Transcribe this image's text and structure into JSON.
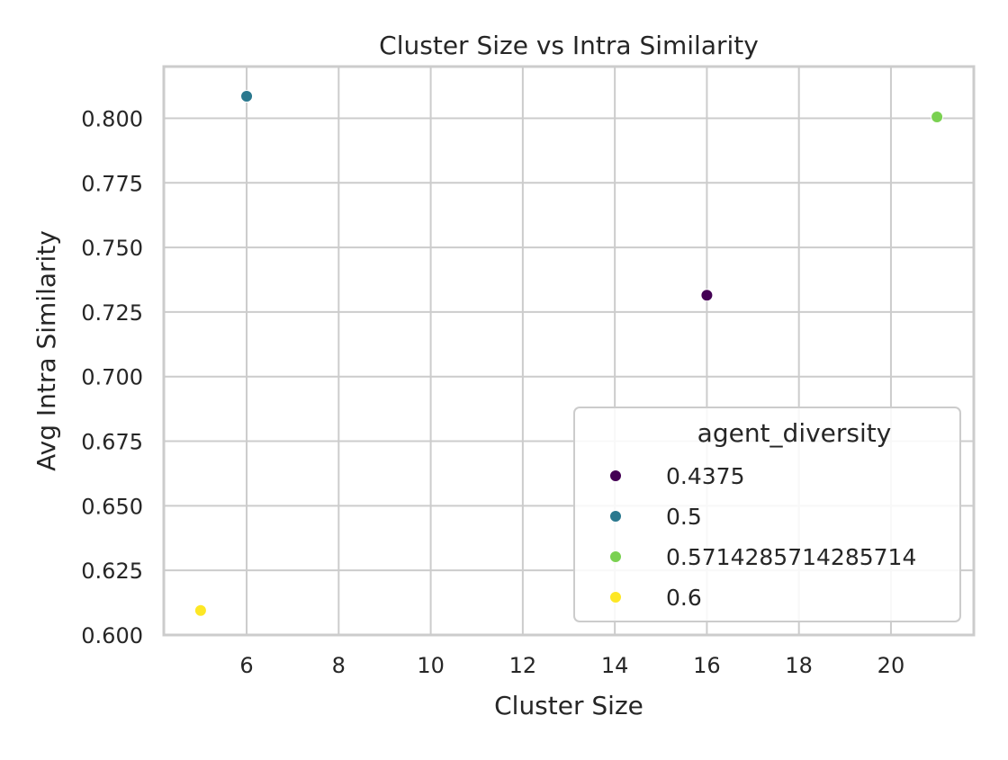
{
  "chart_data": {
    "type": "scatter",
    "title": "Cluster Size vs Intra Similarity",
    "xlabel": "Cluster Size",
    "ylabel": "Avg Intra Similarity",
    "xlim": [
      4.2,
      21.8
    ],
    "ylim": [
      0.6,
      0.82
    ],
    "xticks": [
      6,
      8,
      10,
      12,
      14,
      16,
      18,
      20
    ],
    "yticks": [
      0.6,
      0.625,
      0.65,
      0.675,
      0.7,
      0.725,
      0.75,
      0.775,
      0.8
    ],
    "ytick_labels": [
      "0.600",
      "0.625",
      "0.650",
      "0.675",
      "0.700",
      "0.725",
      "0.750",
      "0.775",
      "0.800"
    ],
    "grid": true,
    "legend": {
      "title": "agent_diversity",
      "placement": "lower-right"
    },
    "series": [
      {
        "name": "0.4375",
        "color": "#440154",
        "points": [
          {
            "x": 16,
            "y": 0.7315
          }
        ]
      },
      {
        "name": "0.5",
        "color": "#2a788e",
        "points": [
          {
            "x": 6,
            "y": 0.8085
          }
        ]
      },
      {
        "name": "0.5714285714285714",
        "color": "#7ad151",
        "points": [
          {
            "x": 21,
            "y": 0.8005
          }
        ]
      },
      {
        "name": "0.6",
        "color": "#fde725",
        "points": [
          {
            "x": 5,
            "y": 0.6095
          }
        ]
      }
    ]
  }
}
